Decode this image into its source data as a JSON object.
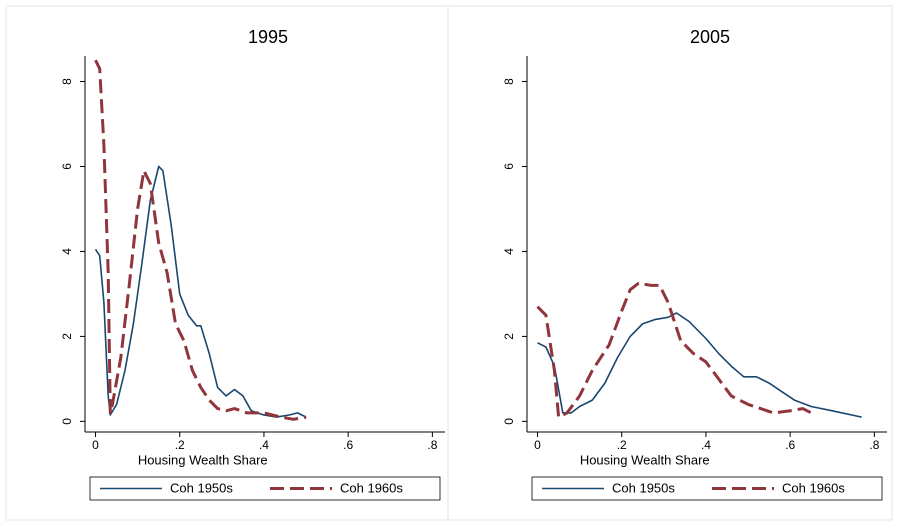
{
  "chart_data": [
    {
      "type": "line",
      "title": "1995",
      "xlabel": "Housing Wealth Share",
      "xlim": [
        -0.025,
        0.83
      ],
      "ylim": [
        -0.25,
        8.6
      ],
      "xticks": [
        0,
        {
          "value": 0.2,
          "label": ".2"
        },
        {
          "value": 0.4,
          "label": ".4"
        },
        {
          "value": 0.6,
          "label": ".6"
        },
        {
          "value": 0.8,
          "label": ".8"
        }
      ],
      "yticks": [
        0,
        2,
        4,
        6,
        8
      ],
      "series": [
        {
          "name": "Coh 1950s",
          "color": "#1a476f",
          "dash": "solid",
          "x": [
            0,
            0.01,
            0.02,
            0.03,
            0.035,
            0.05,
            0.07,
            0.09,
            0.11,
            0.13,
            0.15,
            0.16,
            0.18,
            0.2,
            0.22,
            0.24,
            0.25,
            0.27,
            0.29,
            0.31,
            0.33,
            0.35,
            0.37,
            0.4,
            0.43,
            0.46,
            0.48,
            0.5
          ],
          "values": [
            4.05,
            3.9,
            2.8,
            0.6,
            0.15,
            0.4,
            1.2,
            2.3,
            3.7,
            5.2,
            6.0,
            5.9,
            4.6,
            3.0,
            2.5,
            2.25,
            2.25,
            1.6,
            0.8,
            0.6,
            0.75,
            0.6,
            0.25,
            0.15,
            0.1,
            0.15,
            0.2,
            0.1
          ]
        },
        {
          "name": "Coh 1960s",
          "color": "#90353b",
          "dash": "dashed",
          "x": [
            0,
            0.01,
            0.02,
            0.03,
            0.035,
            0.04,
            0.06,
            0.08,
            0.1,
            0.115,
            0.13,
            0.15,
            0.17,
            0.19,
            0.21,
            0.23,
            0.25,
            0.27,
            0.29,
            0.31,
            0.33,
            0.36,
            0.4,
            0.44,
            0.47,
            0.5
          ],
          "values": [
            8.5,
            8.3,
            6.5,
            3.5,
            0.2,
            0.4,
            1.5,
            3.2,
            5.0,
            5.9,
            5.6,
            4.2,
            3.5,
            2.3,
            1.9,
            1.2,
            0.8,
            0.5,
            0.3,
            0.25,
            0.3,
            0.2,
            0.2,
            0.1,
            0.05,
            0.1
          ]
        }
      ]
    },
    {
      "type": "line",
      "title": "2005",
      "xlabel": "Housing Wealth Share",
      "xlim": [
        -0.025,
        0.83
      ],
      "ylim": [
        -0.25,
        8.6
      ],
      "xticks": [
        0,
        {
          "value": 0.2,
          "label": ".2"
        },
        {
          "value": 0.4,
          "label": ".4"
        },
        {
          "value": 0.6,
          "label": ".6"
        },
        {
          "value": 0.8,
          "label": ".8"
        }
      ],
      "yticks": [
        0,
        2,
        4,
        6,
        8
      ],
      "series": [
        {
          "name": "Coh 1950s",
          "color": "#1a476f",
          "dash": "solid",
          "x": [
            0,
            0.02,
            0.04,
            0.06,
            0.08,
            0.1,
            0.13,
            0.16,
            0.19,
            0.22,
            0.25,
            0.28,
            0.31,
            0.33,
            0.36,
            0.4,
            0.43,
            0.46,
            0.49,
            0.52,
            0.55,
            0.58,
            0.61,
            0.65,
            0.7,
            0.77
          ],
          "values": [
            1.85,
            1.75,
            1.3,
            0.2,
            0.2,
            0.35,
            0.5,
            0.9,
            1.5,
            2.0,
            2.3,
            2.4,
            2.45,
            2.55,
            2.35,
            1.95,
            1.6,
            1.3,
            1.05,
            1.05,
            0.9,
            0.7,
            0.5,
            0.35,
            0.25,
            0.1
          ]
        },
        {
          "name": "Coh 1960s",
          "color": "#90353b",
          "dash": "dashed",
          "x": [
            0,
            0.02,
            0.04,
            0.05,
            0.07,
            0.1,
            0.13,
            0.17,
            0.2,
            0.22,
            0.24,
            0.27,
            0.29,
            0.31,
            0.34,
            0.37,
            0.4,
            0.43,
            0.46,
            0.5,
            0.53,
            0.56,
            0.6,
            0.63,
            0.65
          ],
          "values": [
            2.7,
            2.5,
            1.2,
            0.1,
            0.2,
            0.6,
            1.2,
            1.8,
            2.6,
            3.1,
            3.25,
            3.2,
            3.2,
            2.8,
            1.9,
            1.6,
            1.4,
            1.0,
            0.6,
            0.4,
            0.3,
            0.2,
            0.25,
            0.3,
            0.2
          ]
        }
      ]
    }
  ]
}
